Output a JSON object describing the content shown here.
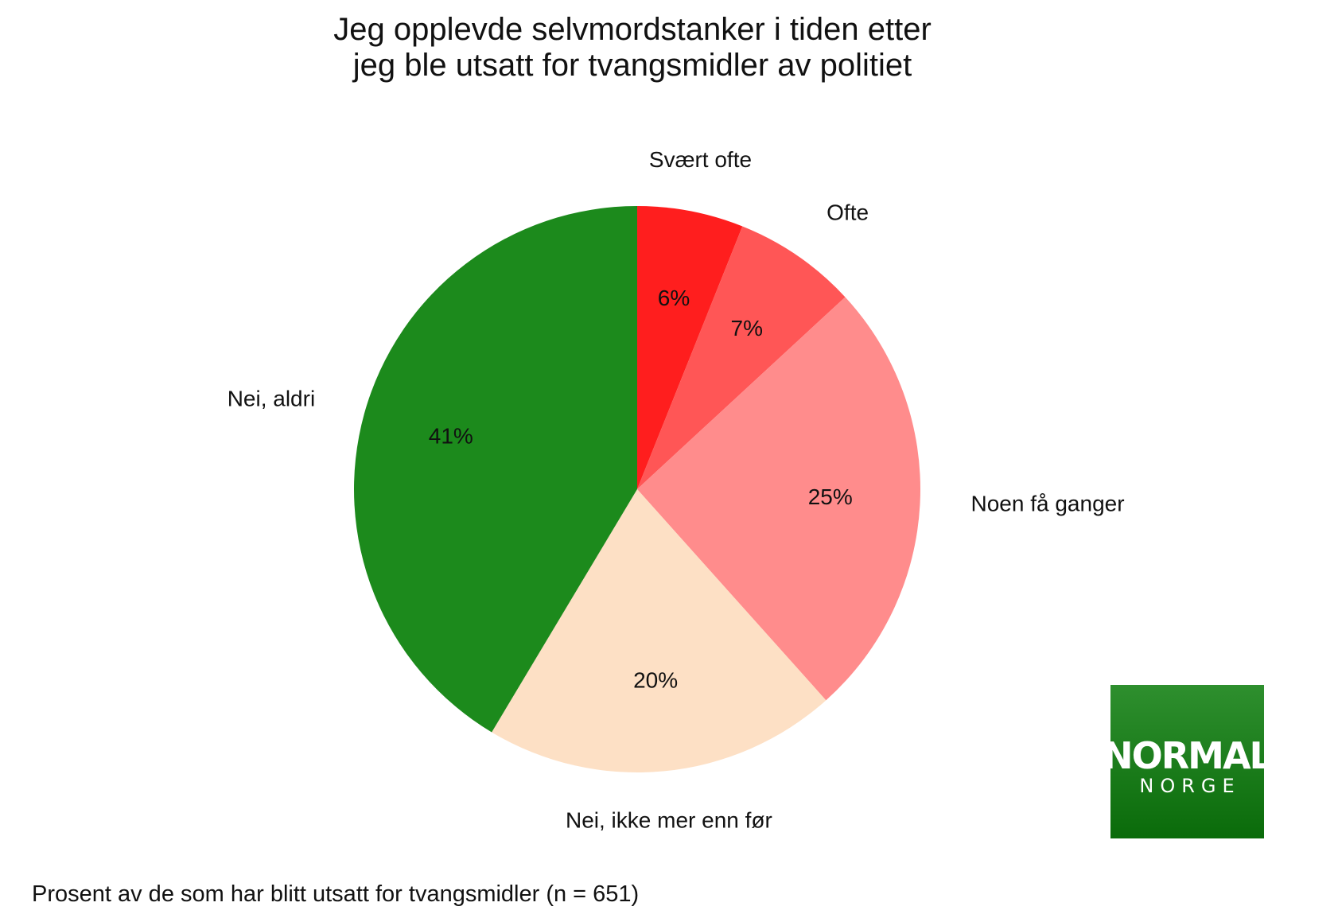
{
  "chart_data": {
    "type": "pie",
    "title": [
      "Jeg opplevde selvmordstanker i tiden etter",
      "jeg ble utsatt for tvangsmidler av politiet"
    ],
    "slices": [
      {
        "label": "Svært ofte",
        "value": 6,
        "value_label": "6%",
        "color": "#ff1e1e"
      },
      {
        "label": "Ofte",
        "value": 7,
        "value_label": "7%",
        "color": "#ff5656"
      },
      {
        "label": "Noen få ganger",
        "value": 25,
        "value_label": "25%",
        "color": "#ff8c8c"
      },
      {
        "label": "Nei, ikke mer enn før",
        "value": 20,
        "value_label": "20%",
        "color": "#fde0c5"
      },
      {
        "label": "Nei, aldri",
        "value": 41,
        "value_label": "41%",
        "color": "#1c8a1c"
      }
    ],
    "start_angle": "12 o'clock",
    "direction": "clockwise",
    "footnote": "Prosent av de som har blitt utsatt for tvangsmidler (n = 651)"
  },
  "logo": {
    "word": "NORMAL",
    "sub": "NORGE",
    "color_top": "#2e8f2e",
    "color_bottom": "#0a6b0a"
  }
}
